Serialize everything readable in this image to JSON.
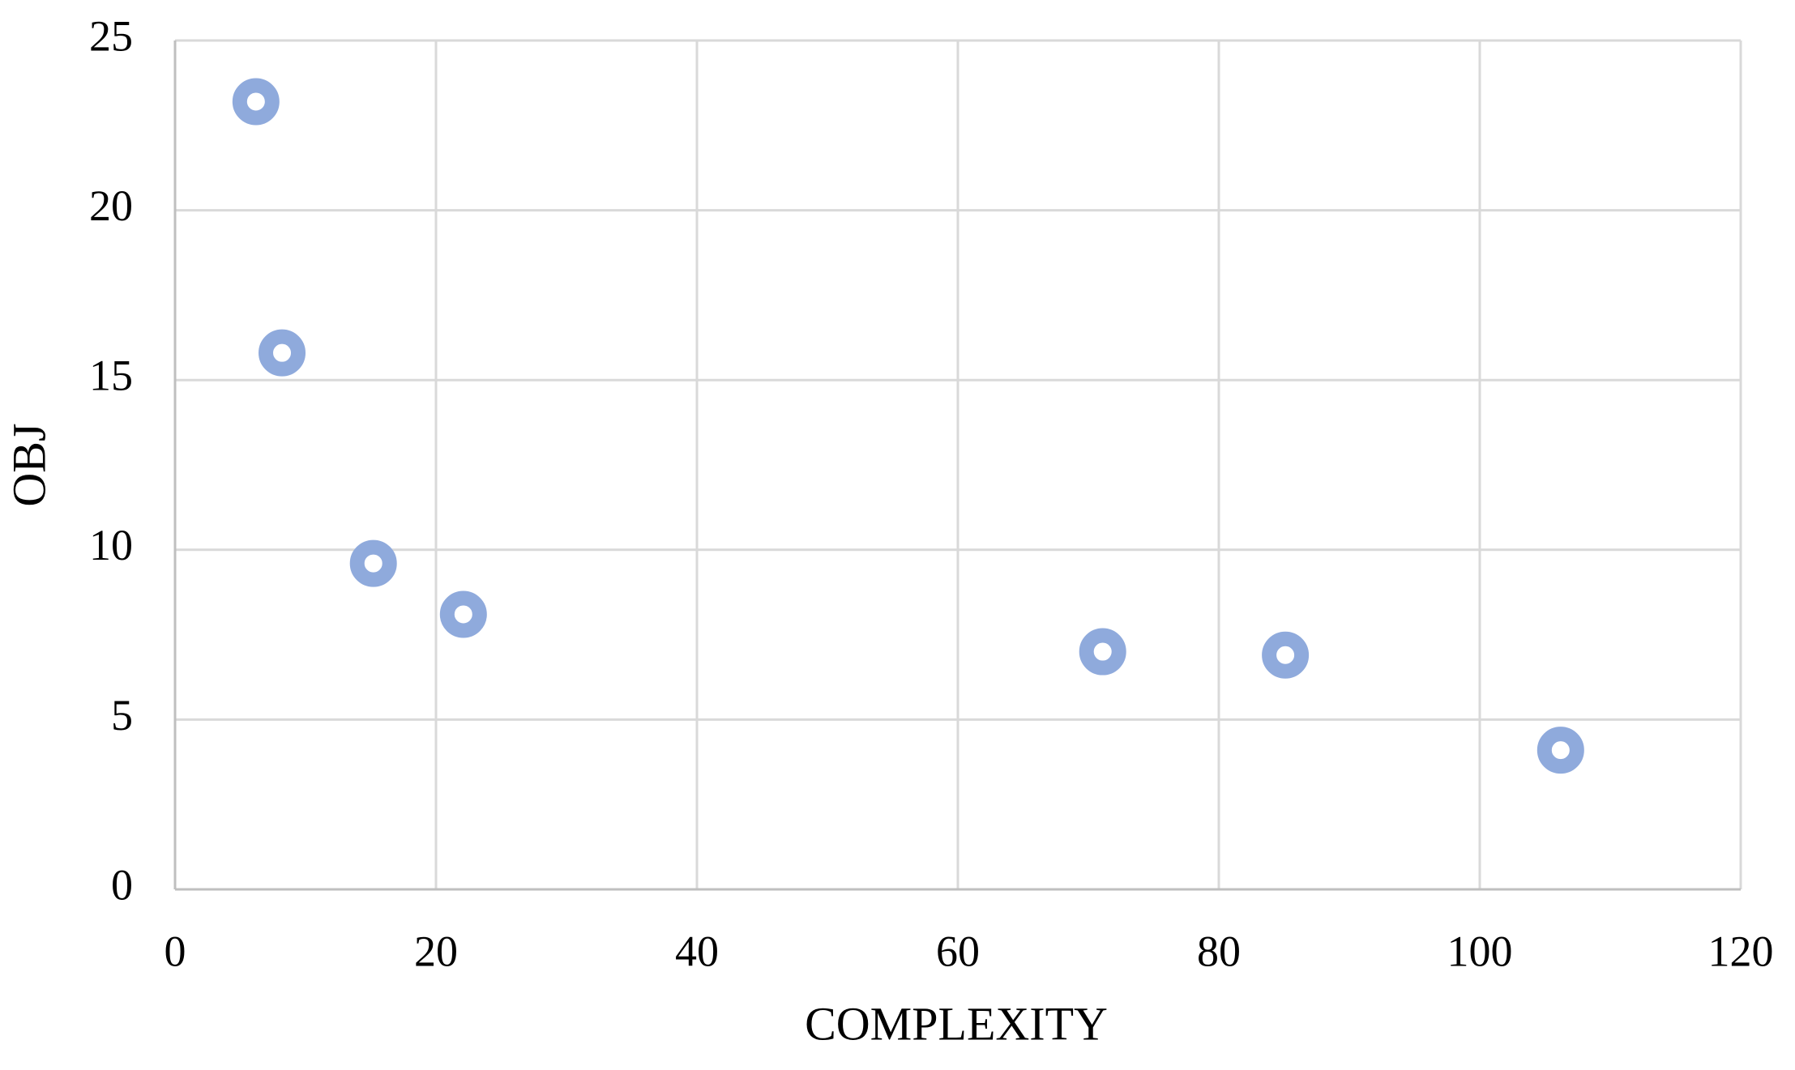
{
  "chart_data": {
    "type": "scatter",
    "x_label": "COMPLEXITY",
    "y_label": "OBJ",
    "x": [
      6.2,
      8.2,
      15.2,
      22.1,
      71.1,
      85.1,
      106.2
    ],
    "values": [
      23.2,
      15.8,
      9.6,
      8.1,
      7.0,
      6.9,
      4.1
    ],
    "color": "#8faadc",
    "xlim": [
      0,
      120
    ],
    "xticks": [
      0,
      20,
      40,
      60,
      80,
      100,
      120
    ],
    "ylim": [
      0,
      25
    ],
    "yticks": [
      0,
      5,
      10,
      15,
      20,
      25
    ],
    "grid": true
  }
}
